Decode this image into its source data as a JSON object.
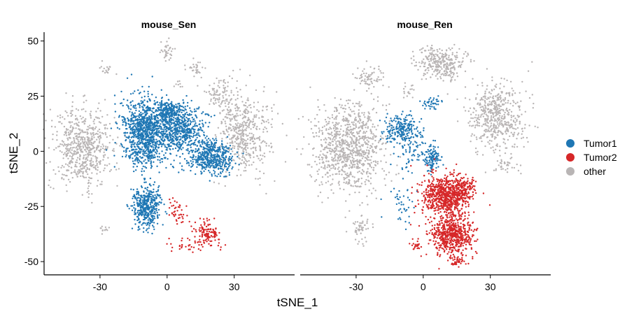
{
  "chart_data": {
    "type": "scatter",
    "xlabel": "tSNE_1",
    "ylabel": "tSNE_2",
    "xlim": [
      -55,
      57
    ],
    "ylim": [
      -56,
      54
    ],
    "xticks": [
      -30,
      0,
      30
    ],
    "yticks": [
      50,
      25,
      0,
      -25,
      -50
    ],
    "xtick_labels": [
      "-30",
      "0",
      "30"
    ],
    "ytick_labels": [
      "50",
      "25",
      "0",
      "-25",
      "-50"
    ],
    "legend_position": "right",
    "legend": [
      {
        "name": "Tumor1",
        "color": "#1f77b4"
      },
      {
        "name": "Tumor2",
        "color": "#d62728"
      },
      {
        "name": "other",
        "color": "#b9b5b5"
      }
    ],
    "panels": [
      {
        "title": "mouse_Sen",
        "series": [
          {
            "name": "other",
            "color": "#b9b5b5",
            "clusters": [
              {
                "cx": -38,
                "cy": 2,
                "rx": 12,
                "ry": 16,
                "n": 620
              },
              {
                "cx": 34,
                "cy": 8,
                "rx": 11,
                "ry": 17,
                "n": 480
              },
              {
                "cx": 24,
                "cy": 25,
                "rx": 6,
                "ry": 8,
                "n": 90
              },
              {
                "cx": 0,
                "cy": 45,
                "rx": 3,
                "ry": 4,
                "n": 35
              },
              {
                "cx": 13,
                "cy": 38,
                "rx": 4,
                "ry": 4,
                "n": 30
              },
              {
                "cx": -27,
                "cy": 37,
                "rx": 3,
                "ry": 3,
                "n": 18
              },
              {
                "cx": -28,
                "cy": -35,
                "rx": 2,
                "ry": 2,
                "n": 12
              },
              {
                "cx": 5,
                "cy": 30,
                "rx": 2,
                "ry": 2,
                "n": 8
              }
            ]
          },
          {
            "name": "Tumor1",
            "color": "#1f77b4",
            "clusters": [
              {
                "cx": -10,
                "cy": 8,
                "rx": 9,
                "ry": 14,
                "n": 950
              },
              {
                "cx": 6,
                "cy": 10,
                "rx": 10,
                "ry": 10,
                "n": 600
              },
              {
                "cx": 20,
                "cy": -3,
                "rx": 9,
                "ry": 7,
                "n": 450
              },
              {
                "cx": -9,
                "cy": -25,
                "rx": 6,
                "ry": 9,
                "n": 420
              },
              {
                "cx": 0,
                "cy": 18,
                "rx": 6,
                "ry": 4,
                "n": 200
              }
            ]
          },
          {
            "name": "Tumor2",
            "color": "#d62728",
            "clusters": [
              {
                "cx": 17,
                "cy": -38,
                "rx": 6,
                "ry": 6,
                "n": 130
              },
              {
                "cx": 5,
                "cy": -27,
                "rx": 4,
                "ry": 5,
                "n": 40
              },
              {
                "cx": 8,
                "cy": -42,
                "rx": 5,
                "ry": 3,
                "n": 25
              }
            ]
          }
        ]
      },
      {
        "title": "mouse_Ren",
        "series": [
          {
            "name": "other",
            "color": "#b9b5b5",
            "clusters": [
              {
                "cx": -33,
                "cy": 2,
                "rx": 14,
                "ry": 18,
                "n": 950
              },
              {
                "cx": 33,
                "cy": 15,
                "rx": 11,
                "ry": 14,
                "n": 520
              },
              {
                "cx": 8,
                "cy": 40,
                "rx": 10,
                "ry": 7,
                "n": 300
              },
              {
                "cx": -24,
                "cy": 33,
                "rx": 6,
                "ry": 5,
                "n": 70
              },
              {
                "cx": 37,
                "cy": -7,
                "rx": 5,
                "ry": 4,
                "n": 35
              },
              {
                "cx": -28,
                "cy": -35,
                "rx": 4,
                "ry": 5,
                "n": 50
              },
              {
                "cx": -6,
                "cy": 27,
                "rx": 3,
                "ry": 3,
                "n": 15
              }
            ]
          },
          {
            "name": "Tumor1",
            "color": "#1f77b4",
            "clusters": [
              {
                "cx": -10,
                "cy": 10,
                "rx": 7,
                "ry": 7,
                "n": 220
              },
              {
                "cx": 4,
                "cy": -3,
                "rx": 3,
                "ry": 6,
                "n": 120
              },
              {
                "cx": 4,
                "cy": 22,
                "rx": 4,
                "ry": 3,
                "n": 40
              },
              {
                "cx": -10,
                "cy": -25,
                "rx": 6,
                "ry": 8,
                "n": 40
              },
              {
                "cx": -5,
                "cy": 0,
                "rx": 6,
                "ry": 10,
                "n": 60
              }
            ]
          },
          {
            "name": "Tumor2",
            "color": "#d62728",
            "clusters": [
              {
                "cx": 10,
                "cy": -20,
                "rx": 10,
                "ry": 9,
                "n": 700
              },
              {
                "cx": 13,
                "cy": -38,
                "rx": 9,
                "ry": 8,
                "n": 600
              },
              {
                "cx": 17,
                "cy": -17,
                "rx": 6,
                "ry": 5,
                "n": 150
              },
              {
                "cx": 15,
                "cy": -50,
                "rx": 3,
                "ry": 2,
                "n": 35
              },
              {
                "cx": -3,
                "cy": -43,
                "rx": 2,
                "ry": 1.5,
                "n": 20
              }
            ]
          }
        ]
      }
    ]
  }
}
